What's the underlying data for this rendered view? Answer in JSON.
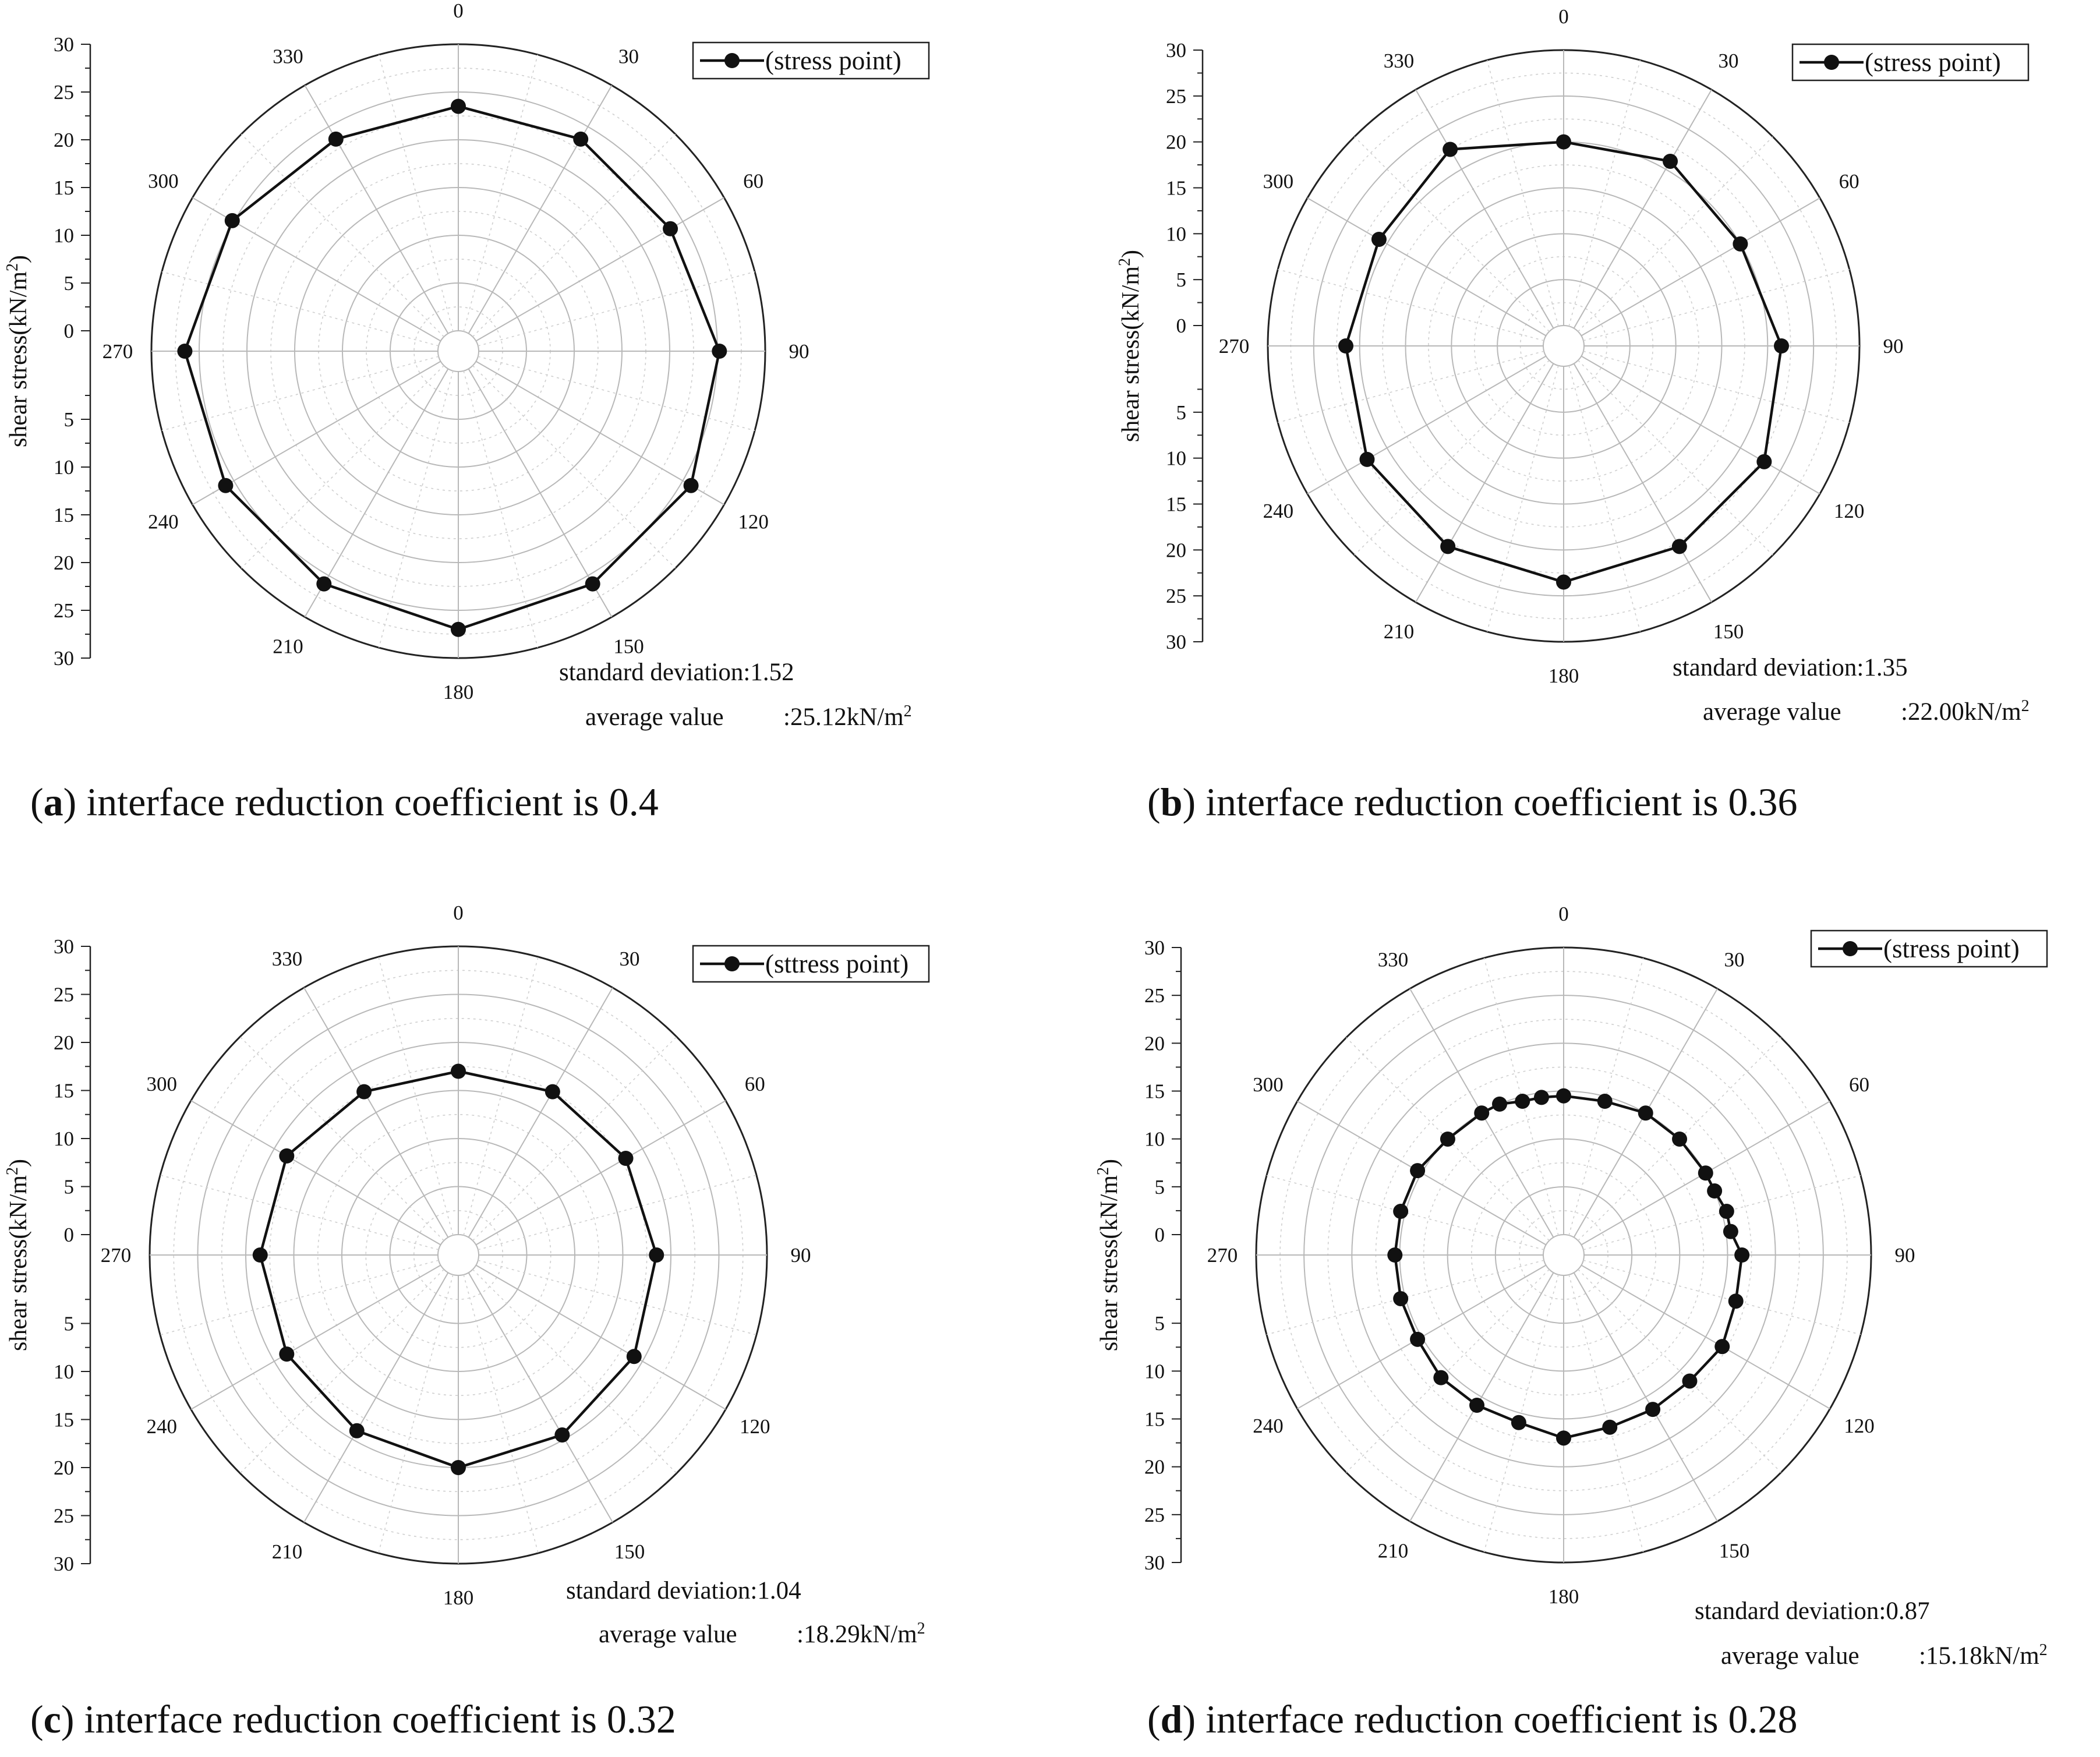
{
  "chart_data": [
    {
      "type": "polar-line",
      "caption": {
        "letter": "a",
        "text": " interface reduction coefficient is 0.4"
      },
      "ylabel": "shear stress(kN/m2)",
      "ylim": [
        0,
        30
      ],
      "angle_ticks": [
        0,
        30,
        60,
        90,
        120,
        150,
        180,
        210,
        240,
        270,
        300,
        330
      ],
      "legend": "(stress point)",
      "stats": {
        "std_label": "standard deviation:1.52",
        "avg_label": "average value",
        "avg_value": ":25.12kN/m2"
      },
      "series": [
        {
          "name": "(stress point)",
          "angles": [
            0,
            30,
            60,
            90,
            120,
            150,
            180,
            210,
            240,
            270,
            300,
            330
          ],
          "values": [
            23.5,
            23.5,
            23.5,
            25.2,
            26.0,
            26.0,
            27.0,
            26.0,
            26.0,
            26.5,
            25.2,
            23.5
          ]
        }
      ]
    },
    {
      "type": "polar-line",
      "caption": {
        "letter": "b",
        "text": " interface reduction coefficient is 0.36"
      },
      "ylabel": "shear stress(kN/m2)",
      "ylim": [
        0,
        30
      ],
      "angle_ticks": [
        0,
        30,
        60,
        90,
        120,
        150,
        180,
        210,
        240,
        270,
        300,
        330
      ],
      "legend": "(stress point)",
      "stats": {
        "std_label": "standard deviation:1.35",
        "avg_label": "average value",
        "avg_value": ":22.00kN/m2"
      },
      "series": [
        {
          "name": "(stress point)",
          "angles": [
            0,
            30,
            60,
            90,
            120,
            150,
            180,
            210,
            240,
            270,
            300,
            330
          ],
          "values": [
            20.0,
            21.0,
            20.0,
            21.5,
            23.0,
            23.0,
            23.5,
            23.0,
            22.5,
            21.5,
            21.0,
            22.5
          ]
        }
      ]
    },
    {
      "type": "polar-line",
      "caption": {
        "letter": "c",
        "text": " interface reduction coefficient is 0.32"
      },
      "ylabel": "shear stress(kN/m2)",
      "ylim": [
        0,
        30
      ],
      "angle_ticks": [
        0,
        30,
        60,
        90,
        120,
        150,
        180,
        210,
        240,
        270,
        300,
        330
      ],
      "legend": "(sttress point)",
      "stats": {
        "std_label": "standard deviation:1.04",
        "avg_label": "average value",
        "avg_value": ":18.29kN/m2"
      },
      "series": [
        {
          "name": "(sttress point)",
          "angles": [
            0,
            30,
            60,
            90,
            120,
            150,
            180,
            210,
            240,
            270,
            300,
            330
          ],
          "values": [
            17.0,
            17.5,
            18.0,
            18.5,
            19.0,
            19.5,
            20.0,
            19.0,
            18.5,
            18.5,
            18.5,
            17.5
          ]
        }
      ]
    },
    {
      "type": "polar-line",
      "caption": {
        "letter": "d",
        "text": " interface reduction coefficient is 0.28"
      },
      "ylabel": "shear stress(kN/m2)",
      "ylim": [
        0,
        30
      ],
      "angle_ticks": [
        0,
        30,
        60,
        90,
        120,
        150,
        180,
        210,
        240,
        270,
        300,
        330
      ],
      "legend": "(stress point)",
      "stats": {
        "std_label": "standard deviation:0.87",
        "avg_label": "average value",
        "avg_value": ":15.18kN/m2"
      },
      "series": [
        {
          "name": "(stress point)",
          "angles": [
            0,
            15,
            30,
            45,
            60,
            67,
            75,
            82,
            90,
            105,
            120,
            135,
            150,
            165,
            180,
            195,
            210,
            225,
            240,
            255,
            270,
            285,
            300,
            315,
            330,
            337,
            345,
            352
          ],
          "values": [
            14.5,
            14.5,
            15.0,
            15.0,
            15.0,
            15.0,
            15.5,
            15.5,
            16.5,
            16.5,
            17.0,
            16.5,
            16.5,
            16.5,
            17.0,
            16.0,
            16.0,
            16.0,
            15.5,
            15.5,
            15.5,
            15.5,
            15.5,
            15.0,
            15.0,
            15.0,
            14.5,
            14.5
          ]
        }
      ]
    }
  ]
}
